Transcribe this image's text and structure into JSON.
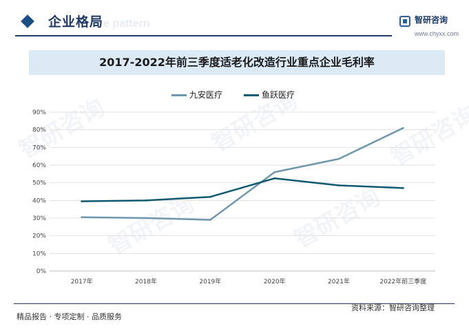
{
  "header": {
    "section_title": "企业格局",
    "section_ghost": "e pattern",
    "brand_name": "智研咨询",
    "brand_url": "www.chyxx.com"
  },
  "colors": {
    "series1": "#6f97ad",
    "series2": "#0f5a73",
    "grid": "#e1e1e1",
    "accent": "#1f3a66"
  },
  "chart_data": {
    "type": "line",
    "title": "2017-2022年前三季度适老化改造行业重点企业毛利率",
    "categories": [
      "2017年",
      "2018年",
      "2019年",
      "2020年",
      "2021年",
      "2022年前三季度"
    ],
    "ylim": [
      0,
      90
    ],
    "yticks": [
      "0%",
      "10%",
      "20%",
      "30%",
      "40%",
      "50%",
      "60%",
      "70%",
      "80%",
      "90%"
    ],
    "grid": true,
    "legend": "top-center",
    "series": [
      {
        "name": "九安医疗",
        "values": [
          30.5,
          30.0,
          29.0,
          56.0,
          63.5,
          81.0
        ]
      },
      {
        "name": "鱼跃医疗",
        "values": [
          39.5,
          40.0,
          42.0,
          52.5,
          48.5,
          47.0
        ]
      }
    ]
  },
  "footer": {
    "left": "精品报告 · 专项定制 · 品质服务",
    "right": "资料来源：智研咨询整理"
  }
}
